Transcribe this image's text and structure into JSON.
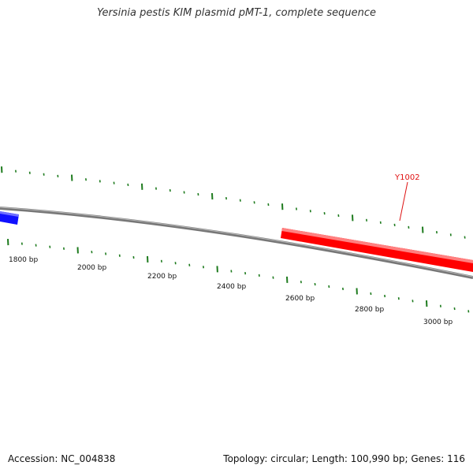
{
  "title": "Yersinia pestis KIM plasmid pMT-1, complete sequence",
  "footer": {
    "accession": "Accession: NC_004838",
    "summary": "Topology: circular; Length: 100,990 bp; Genes: 116"
  },
  "colors": {
    "backbone": "#808080",
    "tick": "#1e7b1e",
    "gene_forward": "#ff0000",
    "gene_reverse": "#1010ff",
    "label": "#dd1111"
  },
  "scale_labels": [
    "1800 bp",
    "2000 bp",
    "2200 bp",
    "2400 bp",
    "2600 bp",
    "2800 bp",
    "3000 bp"
  ],
  "genes": [
    {
      "label": "Y1002",
      "strand": "forward"
    },
    {
      "label": "",
      "strand": "reverse"
    }
  ]
}
